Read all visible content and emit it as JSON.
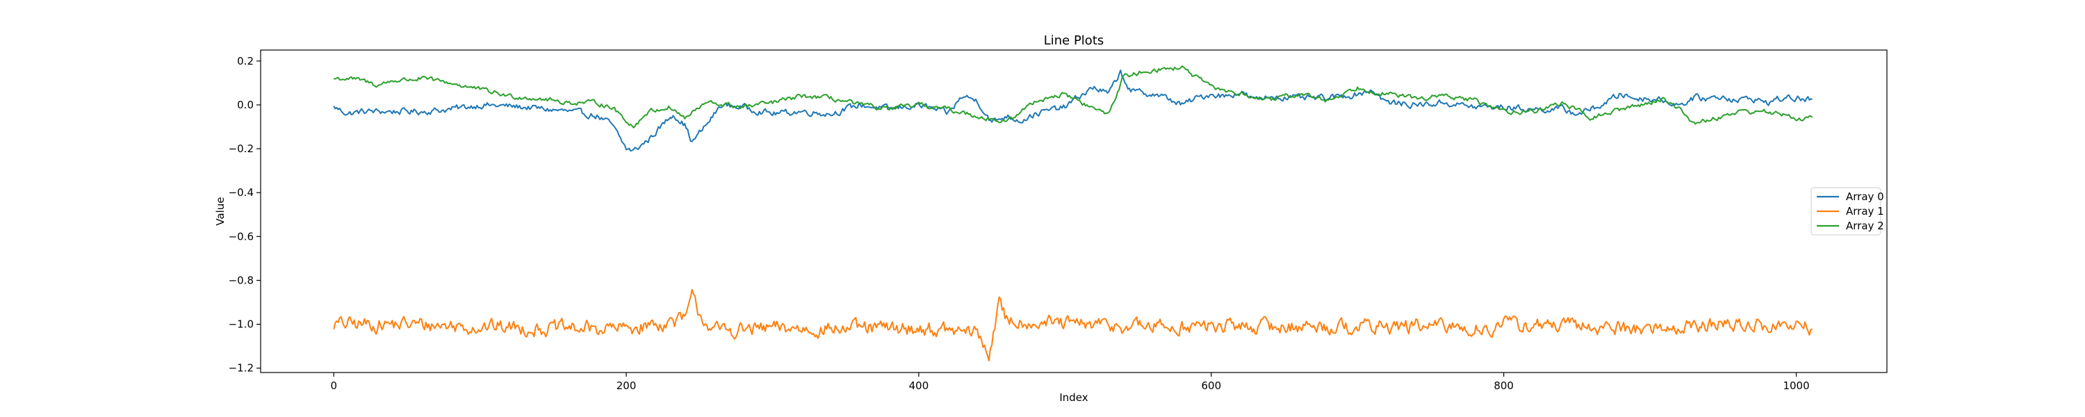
{
  "chart_data": {
    "type": "line",
    "title": "Line Plots",
    "xlabel": "Index",
    "ylabel": "Value",
    "xlim": [
      -50,
      1062
    ],
    "ylim": [
      -1.22,
      0.25
    ],
    "xticks": [
      0,
      200,
      400,
      600,
      800,
      1000
    ],
    "yticks": [
      0.2,
      0.0,
      -0.2,
      -0.4,
      -0.6,
      -0.8,
      -1.0,
      -1.2
    ],
    "xtick_labels": [
      "0",
      "200",
      "400",
      "600",
      "800",
      "1000"
    ],
    "ytick_labels": [
      "0.2",
      "0.0",
      "−0.2",
      "−0.4",
      "−0.6",
      "−0.8",
      "−1.0",
      "−1.2"
    ],
    "grid": false,
    "legend_position": "center-right",
    "legend_label_array0": "Array 0",
    "legend_label_array1": "Array 1",
    "legend_label_array2": "Array 2",
    "colors": [
      "#1f77b4",
      "#ff7f0e",
      "#2ca02c"
    ],
    "n_points": 1012,
    "series": [
      {
        "name": "Array 0",
        "color": "#1f77b4",
        "anchors": [
          [
            0,
            -0.01
          ],
          [
            10,
            -0.04
          ],
          [
            20,
            -0.03
          ],
          [
            40,
            -0.03
          ],
          [
            60,
            -0.03
          ],
          [
            80,
            -0.02
          ],
          [
            100,
            0.0
          ],
          [
            130,
            -0.01
          ],
          [
            160,
            -0.03
          ],
          [
            180,
            -0.05
          ],
          [
            190,
            -0.09
          ],
          [
            200,
            -0.2
          ],
          [
            205,
            -0.21
          ],
          [
            215,
            -0.16
          ],
          [
            225,
            -0.09
          ],
          [
            232,
            -0.04
          ],
          [
            240,
            -0.09
          ],
          [
            245,
            -0.17
          ],
          [
            255,
            -0.09
          ],
          [
            265,
            0.0
          ],
          [
            280,
            -0.01
          ],
          [
            300,
            -0.04
          ],
          [
            320,
            -0.03
          ],
          [
            340,
            -0.04
          ],
          [
            360,
            0.0
          ],
          [
            380,
            -0.02
          ],
          [
            400,
            0.0
          ],
          [
            410,
            -0.02
          ],
          [
            420,
            -0.04
          ],
          [
            430,
            0.04
          ],
          [
            440,
            0.02
          ],
          [
            450,
            -0.08
          ],
          [
            460,
            -0.05
          ],
          [
            470,
            -0.07
          ],
          [
            480,
            -0.04
          ],
          [
            500,
            -0.01
          ],
          [
            510,
            0.04
          ],
          [
            520,
            0.08
          ],
          [
            530,
            0.05
          ],
          [
            538,
            0.15
          ],
          [
            545,
            0.06
          ],
          [
            560,
            0.05
          ],
          [
            570,
            0.03
          ],
          [
            580,
            0.0
          ],
          [
            590,
            0.03
          ],
          [
            600,
            0.05
          ],
          [
            610,
            0.04
          ],
          [
            620,
            0.06
          ],
          [
            630,
            0.02
          ],
          [
            640,
            0.04
          ],
          [
            660,
            0.03
          ],
          [
            680,
            0.03
          ],
          [
            700,
            0.05
          ],
          [
            710,
            0.07
          ],
          [
            720,
            0.01
          ],
          [
            740,
            0.0
          ],
          [
            760,
            0.01
          ],
          [
            780,
            -0.01
          ],
          [
            800,
            -0.01
          ],
          [
            820,
            -0.02
          ],
          [
            840,
            -0.02
          ],
          [
            850,
            -0.04
          ],
          [
            860,
            -0.02
          ],
          [
            870,
            0.01
          ],
          [
            880,
            0.05
          ],
          [
            890,
            0.03
          ],
          [
            900,
            0.03
          ],
          [
            910,
            0.02
          ],
          [
            920,
            0.0
          ],
          [
            930,
            0.03
          ],
          [
            940,
            0.03
          ],
          [
            950,
            0.04
          ],
          [
            960,
            0.02
          ],
          [
            970,
            0.03
          ],
          [
            980,
            0.01
          ],
          [
            990,
            0.03
          ],
          [
            1000,
            0.03
          ],
          [
            1011,
            0.02
          ]
        ],
        "noise": 0.012
      },
      {
        "name": "Array 1",
        "color": "#ff7f0e",
        "anchors": [
          [
            0,
            -1.0
          ],
          [
            50,
            -1.0
          ],
          [
            100,
            -1.01
          ],
          [
            150,
            -1.02
          ],
          [
            200,
            -1.02
          ],
          [
            240,
            -0.98
          ],
          [
            245,
            -0.88
          ],
          [
            250,
            -0.95
          ],
          [
            260,
            -1.03
          ],
          [
            300,
            -1.02
          ],
          [
            350,
            -1.02
          ],
          [
            400,
            -1.02
          ],
          [
            440,
            -1.04
          ],
          [
            448,
            -1.14
          ],
          [
            452,
            -1.0
          ],
          [
            455,
            -0.91
          ],
          [
            460,
            -0.98
          ],
          [
            500,
            -1.0
          ],
          [
            550,
            -1.01
          ],
          [
            600,
            -1.01
          ],
          [
            650,
            -1.01
          ],
          [
            700,
            -1.01
          ],
          [
            750,
            -1.01
          ],
          [
            790,
            -1.02
          ],
          [
            800,
            -1.0
          ],
          [
            850,
            -1.01
          ],
          [
            900,
            -1.02
          ],
          [
            950,
            -1.0
          ],
          [
            1000,
            -1.01
          ],
          [
            1011,
            -1.02
          ]
        ],
        "noise": 0.028
      },
      {
        "name": "Array 2",
        "color": "#2ca02c",
        "anchors": [
          [
            0,
            0.12
          ],
          [
            10,
            0.12
          ],
          [
            20,
            0.11
          ],
          [
            30,
            0.09
          ],
          [
            40,
            0.11
          ],
          [
            60,
            0.12
          ],
          [
            80,
            0.1
          ],
          [
            100,
            0.07
          ],
          [
            120,
            0.04
          ],
          [
            140,
            0.03
          ],
          [
            160,
            0.01
          ],
          [
            180,
            0.01
          ],
          [
            190,
            -0.01
          ],
          [
            200,
            -0.07
          ],
          [
            205,
            -0.1
          ],
          [
            215,
            -0.03
          ],
          [
            230,
            -0.01
          ],
          [
            240,
            -0.06
          ],
          [
            255,
            0.01
          ],
          [
            280,
            -0.01
          ],
          [
            300,
            0.01
          ],
          [
            320,
            0.04
          ],
          [
            340,
            0.03
          ],
          [
            360,
            0.0
          ],
          [
            380,
            -0.02
          ],
          [
            400,
            0.0
          ],
          [
            420,
            -0.02
          ],
          [
            440,
            -0.05
          ],
          [
            460,
            -0.08
          ],
          [
            480,
            0.02
          ],
          [
            500,
            0.05
          ],
          [
            520,
            -0.02
          ],
          [
            530,
            -0.04
          ],
          [
            540,
            0.13
          ],
          [
            560,
            0.16
          ],
          [
            580,
            0.17
          ],
          [
            600,
            0.08
          ],
          [
            620,
            0.05
          ],
          [
            640,
            0.02
          ],
          [
            660,
            0.05
          ],
          [
            680,
            0.02
          ],
          [
            700,
            0.08
          ],
          [
            720,
            0.05
          ],
          [
            740,
            0.03
          ],
          [
            760,
            0.04
          ],
          [
            780,
            0.02
          ],
          [
            800,
            -0.03
          ],
          [
            820,
            -0.03
          ],
          [
            840,
            0.01
          ],
          [
            860,
            -0.06
          ],
          [
            880,
            -0.02
          ],
          [
            900,
            0.01
          ],
          [
            910,
            0.03
          ],
          [
            920,
            -0.02
          ],
          [
            930,
            -0.08
          ],
          [
            940,
            -0.07
          ],
          [
            960,
            -0.03
          ],
          [
            980,
            -0.03
          ],
          [
            1000,
            -0.06
          ],
          [
            1011,
            -0.06
          ]
        ],
        "noise": 0.009
      }
    ]
  }
}
